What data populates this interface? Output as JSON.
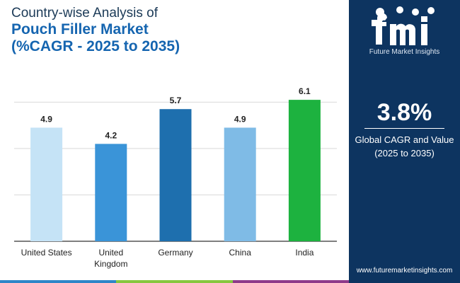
{
  "header": {
    "line1": "Country-wise Analysis of",
    "line2": "Pouch Filler Market",
    "line3": "(%CAGR - 2025 to 2035)"
  },
  "chart_data": {
    "type": "bar",
    "categories": [
      [
        "United States"
      ],
      [
        "United",
        "Kingdom"
      ],
      [
        "Germany"
      ],
      [
        "China"
      ],
      [
        "India"
      ]
    ],
    "values": [
      4.9,
      4.2,
      5.7,
      4.9,
      6.1
    ],
    "colors": [
      "#c5e3f6",
      "#3a94d8",
      "#1e6fae",
      "#7fbbe6",
      "#1db23f"
    ],
    "ylim": [
      0,
      6.5
    ],
    "gridlines": [
      0,
      2,
      4,
      6
    ],
    "title": "",
    "xlabel": "",
    "ylabel": ""
  },
  "sidebar": {
    "logo_letters": "fmi",
    "logo_text": "Future Market Insights",
    "cagr_value": "3.8%",
    "cagr_label_line1": "Global CAGR and Value",
    "cagr_label_line2": "(2025 to 2035)",
    "url": "www.futuremarketinsights.com",
    "accent_color": "#0d3460"
  },
  "stripe_colors": [
    "#2e86c8",
    "#86c73f",
    "#8e3a8a"
  ]
}
